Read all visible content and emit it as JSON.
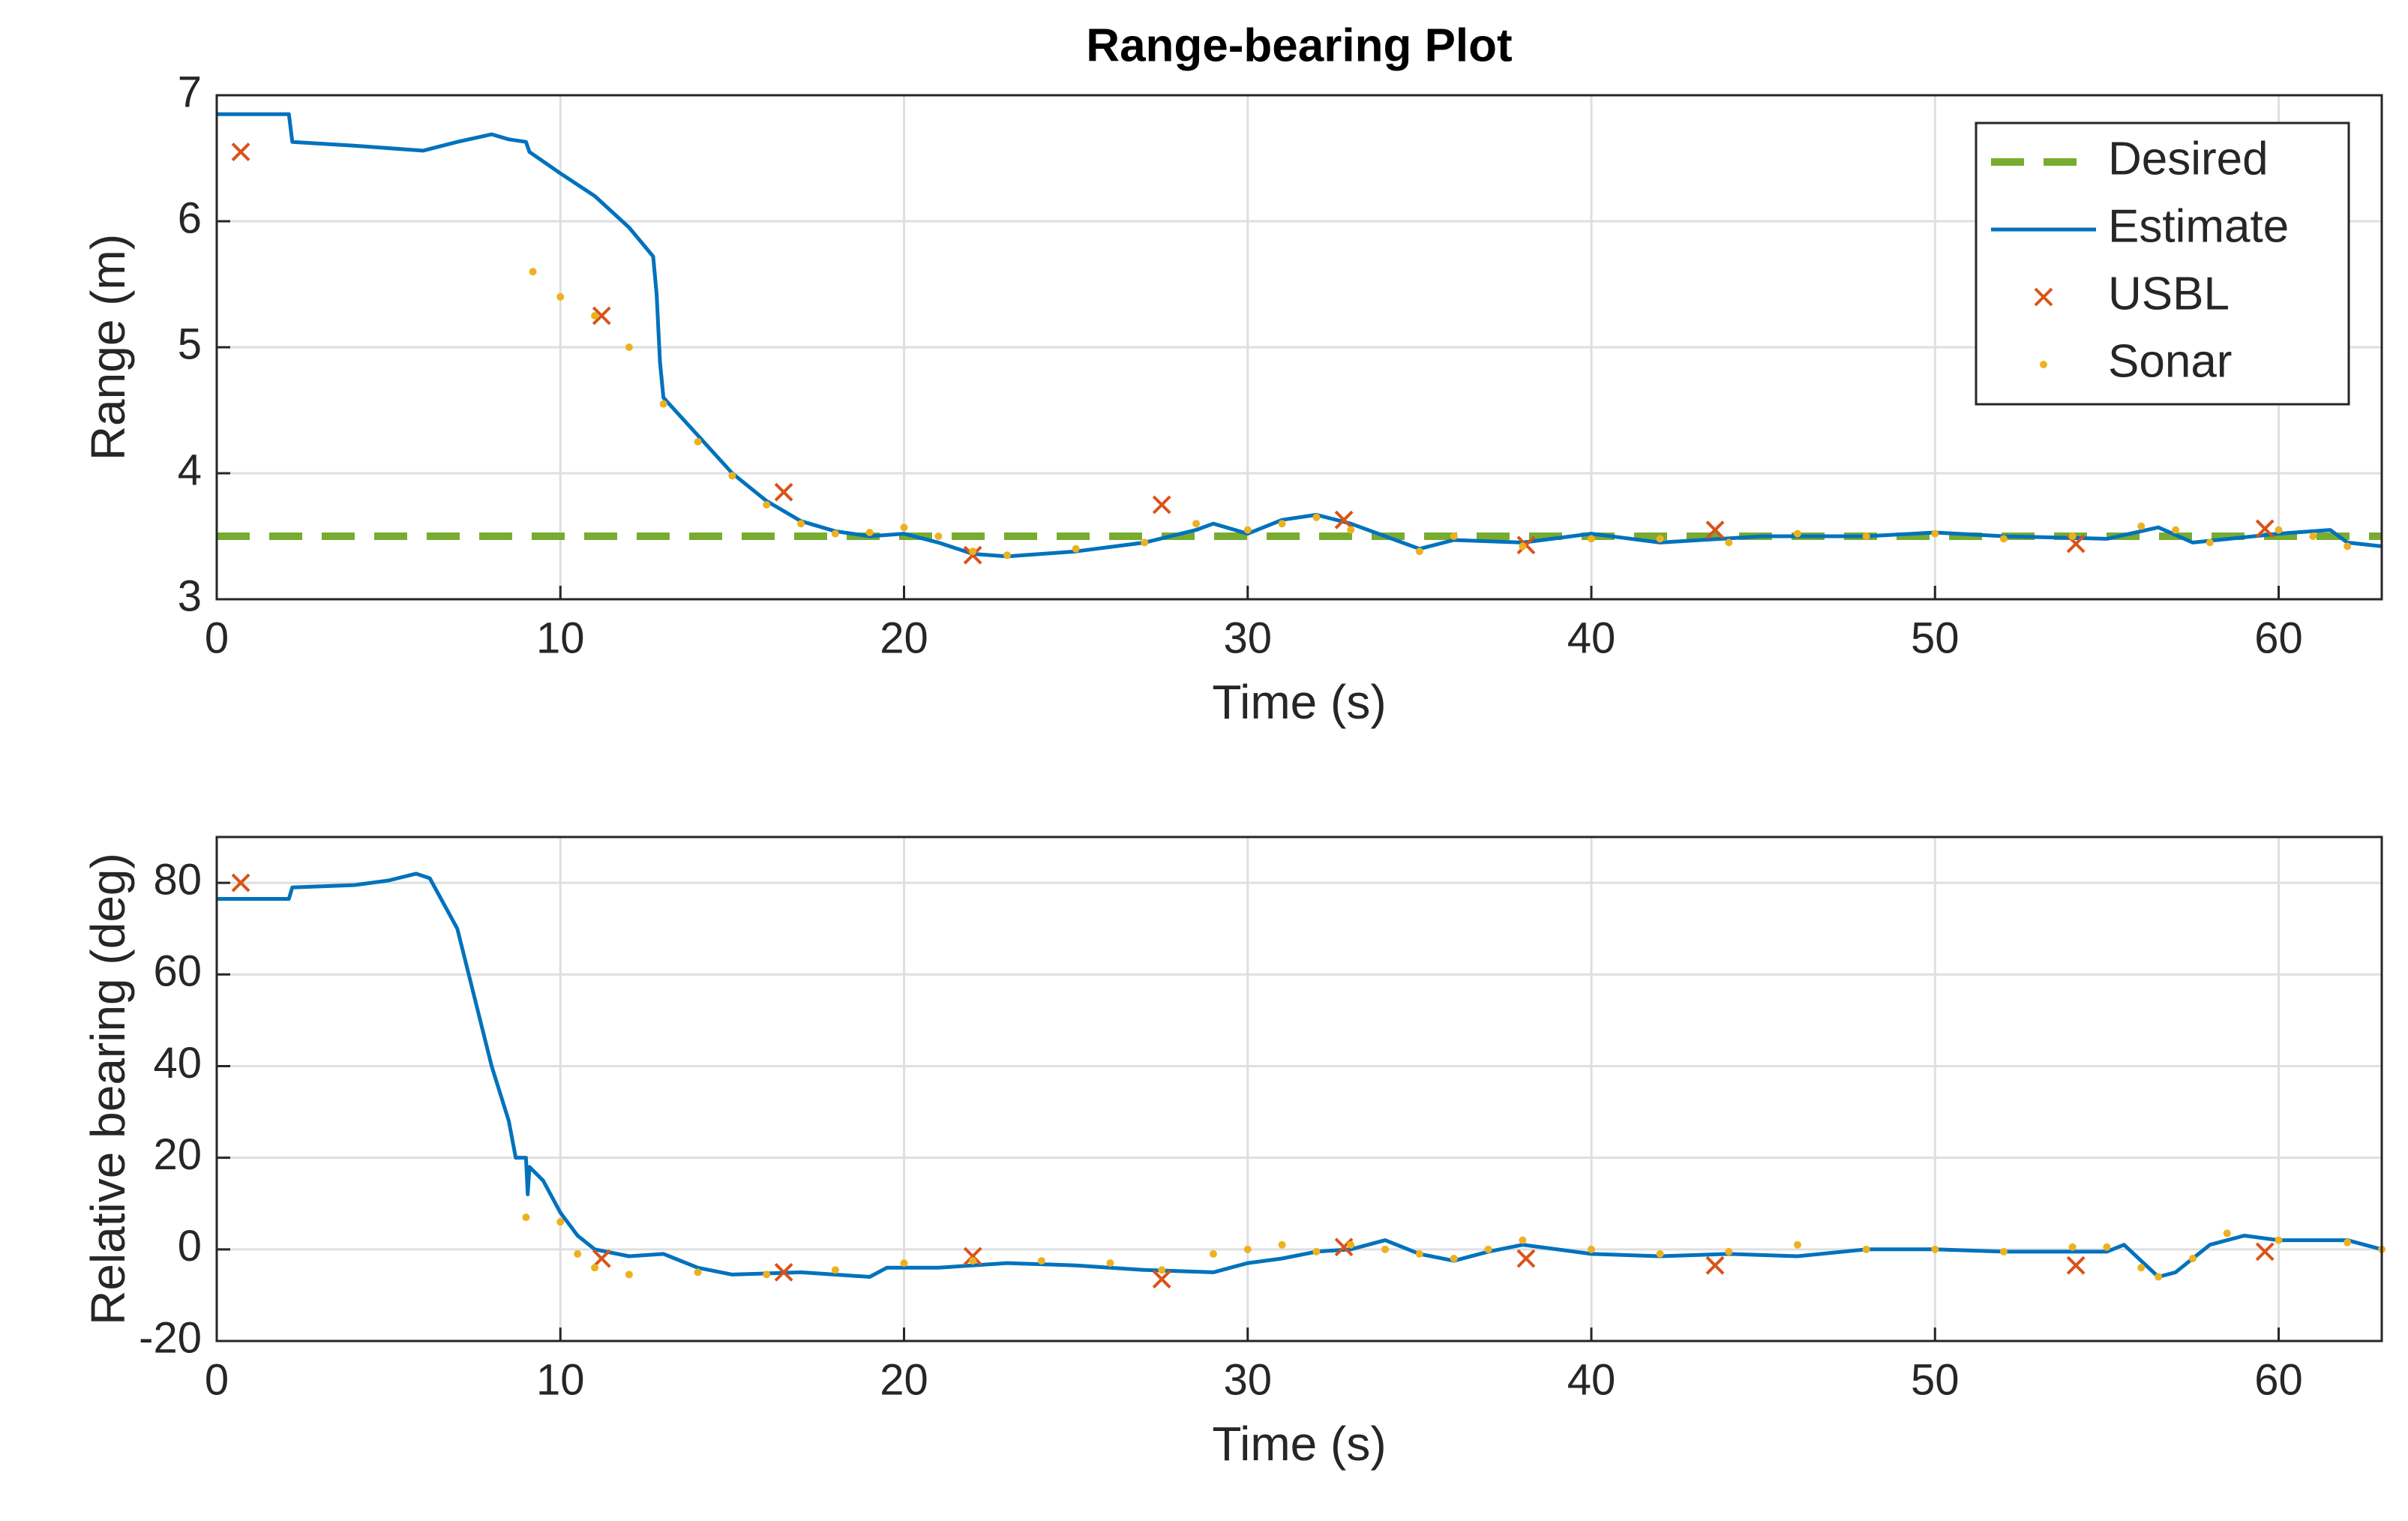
{
  "chart_data": [
    {
      "type": "line",
      "title": "Range-bearing Plot",
      "xlabel": "Time (s)",
      "ylabel": "Range (m)",
      "xlim": [
        0,
        63
      ],
      "xticks": [
        0,
        10,
        20,
        30,
        40,
        50,
        60
      ],
      "ylim": [
        3,
        7
      ],
      "yticks": [
        3,
        4,
        5,
        6,
        7
      ],
      "grid": true,
      "legend": "upper right",
      "series": [
        {
          "name": "Desired",
          "color": "#77ac30",
          "style": "dashed",
          "x": [
            0,
            63
          ],
          "values": [
            3.5,
            3.5
          ]
        },
        {
          "name": "Estimate",
          "color": "#0072bd",
          "style": "solid",
          "x": [
            0,
            2.1,
            2.2,
            4,
            6,
            7,
            8,
            8.5,
            9,
            9.1,
            10,
            11,
            12,
            12.7,
            12.8,
            12.9,
            13,
            14,
            15,
            16,
            17,
            18,
            19,
            20,
            21,
            22,
            23,
            25,
            27,
            28.5,
            29,
            30,
            31,
            32,
            33,
            34,
            35,
            36,
            38,
            40,
            42,
            45,
            48,
            50,
            52,
            55,
            56.5,
            57.5,
            60,
            61.5,
            62,
            63
          ],
          "values": [
            6.85,
            6.85,
            6.63,
            6.6,
            6.56,
            6.63,
            6.69,
            6.65,
            6.63,
            6.55,
            6.38,
            6.2,
            5.95,
            5.72,
            5.42,
            4.88,
            4.6,
            4.3,
            4.0,
            3.78,
            3.62,
            3.54,
            3.5,
            3.52,
            3.45,
            3.36,
            3.34,
            3.38,
            3.45,
            3.55,
            3.6,
            3.52,
            3.63,
            3.67,
            3.6,
            3.5,
            3.4,
            3.47,
            3.45,
            3.52,
            3.45,
            3.5,
            3.5,
            3.53,
            3.5,
            3.48,
            3.57,
            3.45,
            3.52,
            3.55,
            3.45,
            3.42
          ]
        },
        {
          "name": "USBL",
          "color": "#d95319",
          "style": "x",
          "x": [
            0.7,
            11.2,
            16.5,
            22,
            27.5,
            32.8,
            38.1,
            43.6,
            54.1,
            59.6
          ],
          "values": [
            6.55,
            5.25,
            3.85,
            3.35,
            3.75,
            3.63,
            3.43,
            3.55,
            3.44,
            3.56
          ]
        },
        {
          "name": "Sonar",
          "color": "#edb120",
          "style": "dot",
          "x": [
            9.2,
            10,
            11,
            12,
            13,
            14,
            15,
            16,
            17,
            18,
            19,
            20,
            21,
            22,
            23,
            25,
            27,
            28.5,
            30,
            31,
            32,
            33,
            35,
            36,
            38,
            40,
            42,
            44,
            46,
            48,
            50,
            52,
            54,
            56,
            57,
            58,
            60,
            61,
            62
          ],
          "values": [
            5.6,
            5.4,
            5.25,
            5.0,
            4.55,
            4.25,
            3.98,
            3.75,
            3.6,
            3.52,
            3.53,
            3.57,
            3.5,
            3.38,
            3.35,
            3.4,
            3.45,
            3.6,
            3.55,
            3.6,
            3.65,
            3.55,
            3.38,
            3.5,
            3.42,
            3.48,
            3.48,
            3.45,
            3.52,
            3.5,
            3.52,
            3.48,
            3.5,
            3.58,
            3.55,
            3.45,
            3.55,
            3.5,
            3.42
          ]
        }
      ]
    },
    {
      "type": "line",
      "xlabel": "Time (s)",
      "ylabel": "Relative bearing (deg)",
      "xlim": [
        0,
        63
      ],
      "xticks": [
        0,
        10,
        20,
        30,
        40,
        50,
        60
      ],
      "ylim": [
        -20,
        90
      ],
      "yticks": [
        -20,
        0,
        20,
        40,
        60,
        80
      ],
      "grid": true,
      "series": [
        {
          "name": "Estimate",
          "color": "#0072bd",
          "style": "solid",
          "x": [
            0,
            2.1,
            2.2,
            4,
            5,
            5.8,
            6.2,
            7,
            7.5,
            8,
            8.5,
            8.7,
            9,
            9.05,
            9.1,
            9.5,
            10,
            10.5,
            11,
            12,
            13,
            14,
            15,
            17,
            19,
            19.5,
            21,
            23,
            25,
            27,
            29,
            30,
            31,
            32,
            33,
            34,
            35,
            36,
            37,
            38,
            40,
            42,
            44,
            46,
            48,
            50,
            52,
            55,
            55.5,
            56.5,
            57,
            58,
            59,
            60,
            62,
            63
          ],
          "values": [
            76.5,
            76.5,
            79,
            79.5,
            80.5,
            82,
            81,
            70,
            55,
            40,
            28,
            20,
            20,
            12,
            18,
            15,
            8,
            3,
            0,
            -1.5,
            -1,
            -4,
            -5.5,
            -5,
            -6,
            -4,
            -4,
            -3,
            -3.5,
            -4.5,
            -5,
            -3,
            -2,
            -0.5,
            0,
            2,
            -1,
            -2.5,
            -0.5,
            1,
            -1,
            -1.5,
            -1,
            -1.5,
            0,
            0,
            -0.5,
            -0.5,
            1,
            -6,
            -5,
            1,
            3,
            2,
            2,
            0
          ]
        },
        {
          "name": "USBL",
          "color": "#d95319",
          "style": "x",
          "x": [
            0.7,
            11.2,
            16.5,
            22,
            27.5,
            32.8,
            38.1,
            43.6,
            54.1,
            59.6
          ],
          "values": [
            80,
            -2,
            -5,
            -1.5,
            -6.5,
            0.5,
            -2,
            -3.5,
            -3.5,
            -0.5
          ]
        },
        {
          "name": "Sonar",
          "color": "#edb120",
          "style": "dot",
          "x": [
            9,
            10,
            10.5,
            11,
            12,
            14,
            16,
            18,
            20,
            22,
            24,
            26,
            27.5,
            29,
            30,
            31,
            32,
            33,
            34,
            35,
            36,
            37,
            38,
            40,
            42,
            44,
            46,
            48,
            50,
            52,
            54,
            55,
            56,
            56.5,
            57.5,
            58.5,
            60,
            62,
            63
          ],
          "values": [
            7,
            6,
            -1,
            -4,
            -5.5,
            -5,
            -5.5,
            -4.5,
            -3,
            -2.5,
            -2.5,
            -3,
            -4.5,
            -1,
            0,
            1,
            -0.5,
            1,
            0,
            -1,
            -2,
            0,
            2,
            0,
            -1,
            -0.5,
            1,
            0,
            0,
            -0.5,
            0.5,
            0.5,
            -4,
            -6,
            -2,
            3.5,
            2,
            1.5,
            0
          ]
        }
      ]
    }
  ]
}
